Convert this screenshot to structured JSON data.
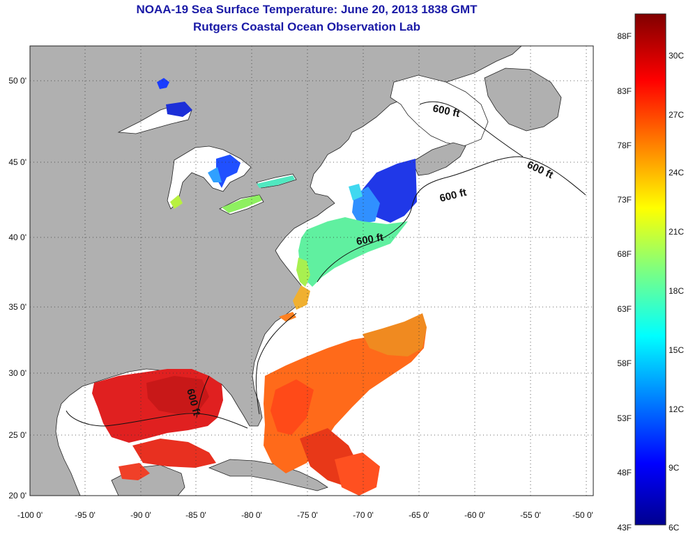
{
  "header": {
    "title": "NOAA-19 Sea Surface Temperature:  June 20, 2013 1838 GMT",
    "subtitle": "Rutgers Coastal Ocean Observation Lab"
  },
  "map": {
    "lat_ticks": [
      "50 0'",
      "45 0'",
      "40 0'",
      "35 0'",
      "30 0'",
      "25 0'",
      "20 0'"
    ],
    "lon_ticks": [
      "-100 0'",
      "-95 0'",
      "-90 0'",
      "-85 0'",
      "-80 0'",
      "-75 0'",
      "-70 0'",
      "-65 0'",
      "-60 0'",
      "-55 0'",
      "-50 0'"
    ],
    "isobath_labels": [
      "600 ft",
      "600 ft",
      "600 ft",
      "600 ft",
      "600 ft"
    ],
    "land_color": "#b0b0b0",
    "ocean_color": "#ffffff"
  },
  "colorbar": {
    "fahrenheit": [
      "88F",
      "83F",
      "78F",
      "73F",
      "68F",
      "63F",
      "58F",
      "53F",
      "48F",
      "43F"
    ],
    "celsius": [
      "30C",
      "27C",
      "24C",
      "21C",
      "18C",
      "15C",
      "12C",
      "9C",
      "6C"
    ]
  }
}
